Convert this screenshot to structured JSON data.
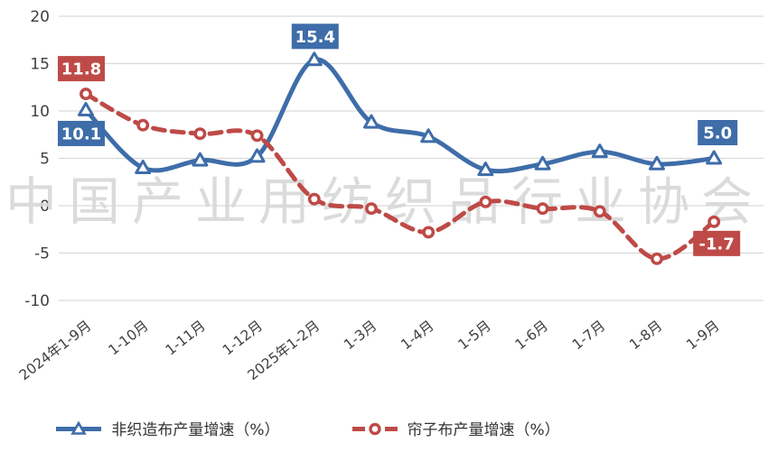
{
  "watermark": "中国产业用纺织品行业协会",
  "chart_data": {
    "type": "line",
    "categories": [
      "2024年1-9月",
      "1-10月",
      "1-11月",
      "1-12月",
      "2025年1-2月",
      "1-3月",
      "1-4月",
      "1-5月",
      "1-6月",
      "1-7月",
      "1-8月",
      "1-9月"
    ],
    "series": [
      {
        "name": "非织造布产量增速（%）",
        "color": "#3E6DA9",
        "line_style": "solid",
        "marker": "triangle",
        "values": [
          10.1,
          4.0,
          4.8,
          5.2,
          15.4,
          8.8,
          7.3,
          3.8,
          4.4,
          5.7,
          4.4,
          5.0
        ]
      },
      {
        "name": "帘子布产量增速（%）",
        "color": "#BE4A47",
        "line_style": "dashed",
        "marker": "circle",
        "values": [
          11.8,
          8.5,
          7.6,
          7.4,
          0.7,
          -0.3,
          -2.8,
          0.4,
          -0.3,
          -0.6,
          -5.6,
          -1.7
        ]
      }
    ],
    "annotations": [
      {
        "series": 0,
        "index": 0,
        "text": "10.1"
      },
      {
        "series": 0,
        "index": 4,
        "text": "15.4"
      },
      {
        "series": 0,
        "index": 11,
        "text": "5.0"
      },
      {
        "series": 1,
        "index": 0,
        "text": "11.8"
      },
      {
        "series": 1,
        "index": 11,
        "text": "-1.7"
      }
    ],
    "title": "",
    "xlabel": "",
    "ylabel": "",
    "ylim": [
      -10,
      20
    ],
    "yticks": [
      20,
      15,
      10,
      5,
      0,
      -5,
      -10
    ],
    "grid": true,
    "legend_position": "bottom",
    "colors": {
      "gridline": "#D9D9D9",
      "axis_text": "#3F3F3F",
      "watermark": "#D8D8D8",
      "label_text": "#FFFFFF"
    }
  }
}
